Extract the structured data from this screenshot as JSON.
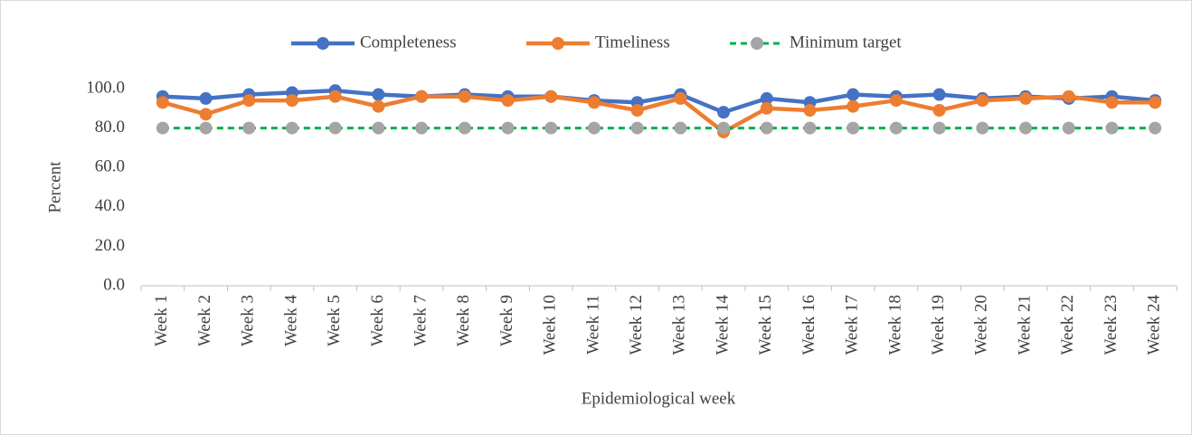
{
  "chart_data": {
    "type": "line",
    "x_label": "Epidemiological week",
    "y_label": "Percent",
    "categories": [
      "Week 1",
      "Week 2",
      "Week 3",
      "Week 4",
      "Week 5",
      "Week 6",
      "Week 7",
      "Week 8",
      "Week 9",
      "Week 10",
      "Week 11",
      "Week 12",
      "Week 13",
      "Week 14",
      "Week 15",
      "Week 16",
      "Week 17",
      "Week 18",
      "Week 19",
      "Week 20",
      "Week 21",
      "Week 22",
      "Week 23",
      "Week 24"
    ],
    "series": [
      {
        "name": "Completeness",
        "color": "#4472c4",
        "values": [
          96,
          95,
          97,
          98,
          99,
          97,
          96,
          97,
          96,
          96,
          94,
          93,
          97,
          88,
          95,
          93,
          97,
          96,
          97,
          95,
          96,
          95,
          96,
          94
        ]
      },
      {
        "name": "Timeliness",
        "color": "#ed7d31",
        "values": [
          93,
          87,
          94,
          94,
          96,
          91,
          96,
          96,
          94,
          96,
          93,
          89,
          95,
          78,
          90,
          89,
          91,
          94,
          89,
          94,
          95,
          96,
          93,
          93
        ]
      },
      {
        "name": "Minimum target",
        "color": "#00b050",
        "marker_color": "#a5a5a5",
        "dashed": true,
        "values": [
          80,
          80,
          80,
          80,
          80,
          80,
          80,
          80,
          80,
          80,
          80,
          80,
          80,
          80,
          80,
          80,
          80,
          80,
          80,
          80,
          80,
          80,
          80,
          80
        ]
      }
    ],
    "ylim": [
      0,
      100
    ],
    "yticks": [
      {
        "value": 0,
        "label": "0.0"
      },
      {
        "value": 20,
        "label": "20.0"
      },
      {
        "value": 40,
        "label": "40.0"
      },
      {
        "value": 60,
        "label": "60.0"
      },
      {
        "value": 80,
        "label": "80.0"
      },
      {
        "value": 100,
        "label": "100.0"
      }
    ],
    "grid": false,
    "legend": "top"
  }
}
